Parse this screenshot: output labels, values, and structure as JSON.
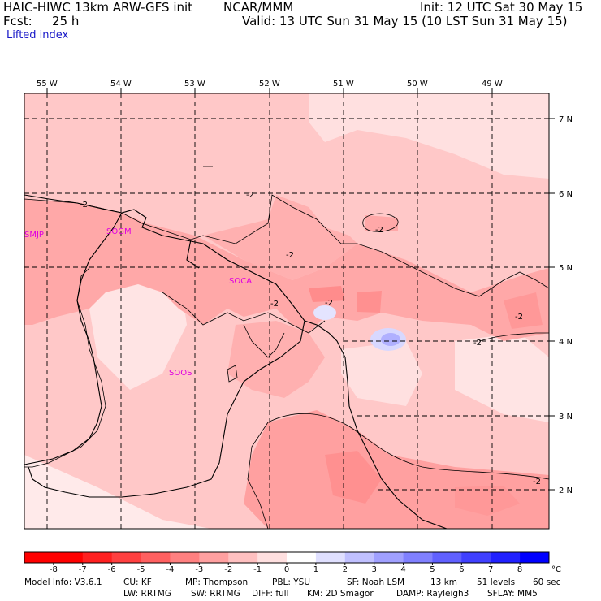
{
  "header": {
    "model": "HAIC-HIWC 13km ARW-GFS init",
    "org": "NCAR/MMM",
    "init": "Init: 12 UTC Sat 30 May 15",
    "fcst_label": "Fcst:",
    "fcst_value": "25 h",
    "valid": "Valid: 13 UTC Sun 31 May 15 (10 LST Sun 31 May 15)",
    "field": "Lifted index"
  },
  "map": {
    "lon_labels": [
      "55 W",
      "54 W",
      "53 W",
      "52 W",
      "51 W",
      "50 W",
      "49 W"
    ],
    "lat_labels": [
      "7 N",
      "6 N",
      "5 N",
      "4 N",
      "3 N",
      "2 N"
    ],
    "stations": [
      "SMJP",
      "SOGM",
      "SOCA",
      "SOOS"
    ],
    "contour_labels": [
      "-2",
      "-2",
      "-2",
      "-2",
      "-2",
      "-2",
      "-2",
      "-2",
      "-2"
    ],
    "colors": {
      "station": "#e000e0",
      "grid": "#000000"
    }
  },
  "colorbar": {
    "labels": [
      "-8",
      "-7",
      "-6",
      "-5",
      "-4",
      "-3",
      "-2",
      "-1",
      "0",
      "1",
      "2",
      "3",
      "4",
      "5",
      "6",
      "7",
      "8"
    ],
    "unit": "°C",
    "colors": [
      "#ff0000",
      "#ff2020",
      "#ff4040",
      "#ff6060",
      "#ff8080",
      "#ffa0a0",
      "#ffc0c0",
      "#ffe0e0",
      "#ffffff",
      "#e0e0ff",
      "#c0c0ff",
      "#a0a0ff",
      "#8080ff",
      "#6060ff",
      "#4040ff",
      "#2020ff",
      "#0000ff"
    ]
  },
  "footer": {
    "line1": [
      "Model Info: V3.6.1",
      "CU: KF",
      "MP: Thompson",
      "PBL: YSU",
      "SF: Noah LSM",
      "13 km",
      "51 levels",
      "60 sec"
    ],
    "line2": [
      "LW: RRTMG",
      "SW: RRTMG",
      "DIFF: full",
      "KM: 2D Smagor",
      "DAMP: Rayleigh3",
      "SFLAY: MM5"
    ]
  }
}
